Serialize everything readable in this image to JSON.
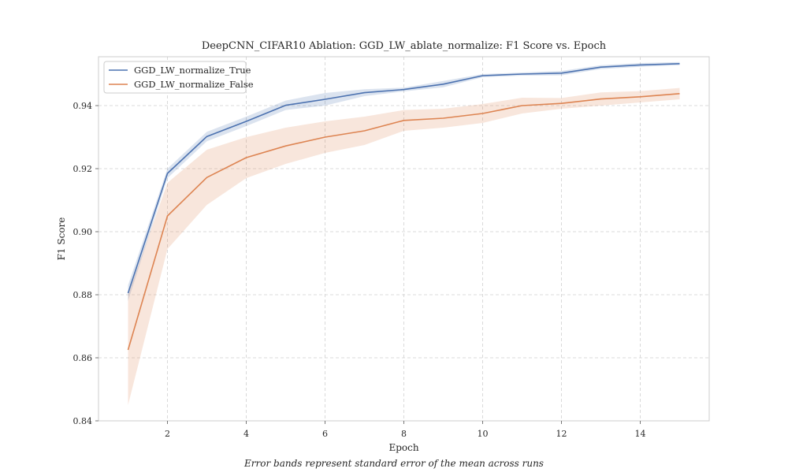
{
  "chart_data": {
    "type": "line",
    "title": "DeepCNN_CIFAR10 Ablation: GGD_LW_ablate_normalize: F1 Score vs. Epoch",
    "xlabel": "Epoch",
    "ylabel": "F1 Score",
    "xlim": [
      0.25,
      15.75
    ],
    "ylim": [
      0.84,
      0.9555
    ],
    "xticks": [
      2,
      4,
      6,
      8,
      10,
      12,
      14
    ],
    "yticks": [
      0.84,
      0.86,
      0.88,
      0.9,
      0.92,
      0.94
    ],
    "grid": true,
    "legend_position": "top-left",
    "x": [
      1,
      2,
      3,
      4,
      5,
      6,
      7,
      8,
      9,
      10,
      11,
      12,
      13,
      14,
      15
    ],
    "series": [
      {
        "name": "GGD_LW_normalize_True",
        "color": "#4c72b0",
        "values": [
          0.8805,
          0.9185,
          0.9302,
          0.935,
          0.9401,
          0.942,
          0.9441,
          0.9451,
          0.9468,
          0.9495,
          0.95,
          0.9503,
          0.9522,
          0.9529,
          0.9533
        ],
        "lower": [
          0.878,
          0.917,
          0.9287,
          0.9335,
          0.9386,
          0.94,
          0.943,
          0.9445,
          0.9458,
          0.949,
          0.9495,
          0.9496,
          0.9516,
          0.9523,
          0.9528
        ],
        "upper": [
          0.883,
          0.92,
          0.9317,
          0.9365,
          0.9416,
          0.944,
          0.9452,
          0.9457,
          0.9478,
          0.95,
          0.9505,
          0.951,
          0.9528,
          0.9535,
          0.9538
        ]
      },
      {
        "name": "GGD_LW_normalize_False",
        "color": "#dd8452",
        "values": [
          0.8625,
          0.905,
          0.9172,
          0.9235,
          0.9272,
          0.93,
          0.932,
          0.9353,
          0.936,
          0.9375,
          0.94,
          0.9407,
          0.9421,
          0.9428,
          0.9438
        ],
        "lower": [
          0.845,
          0.8945,
          0.9085,
          0.917,
          0.9215,
          0.925,
          0.9275,
          0.932,
          0.933,
          0.9345,
          0.9375,
          0.939,
          0.94,
          0.941,
          0.942
        ],
        "upper": [
          0.88,
          0.9155,
          0.926,
          0.93,
          0.933,
          0.935,
          0.9365,
          0.9386,
          0.939,
          0.9405,
          0.9425,
          0.9424,
          0.9442,
          0.9446,
          0.9456
        ]
      }
    ]
  },
  "caption": "Error bands represent standard error of the mean across runs"
}
